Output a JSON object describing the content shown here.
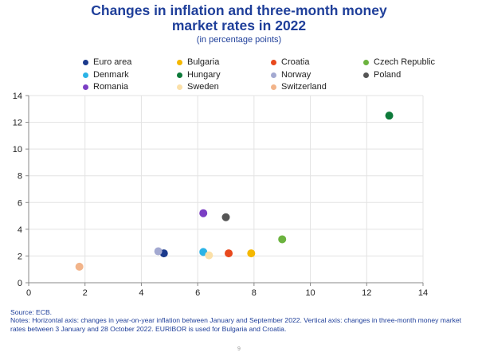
{
  "title_line1": "Changes in inflation and three-month money",
  "title_line2": "market rates in 2022",
  "subtitle": "(in percentage points)",
  "legend": [
    {
      "label": "Euro area",
      "color": "#1b3a8c"
    },
    {
      "label": "Bulgaria",
      "color": "#f5b800"
    },
    {
      "label": "Croatia",
      "color": "#e8491d"
    },
    {
      "label": "Czech Republic",
      "color": "#6cb33f"
    },
    {
      "label": "Denmark",
      "color": "#2bb3e6"
    },
    {
      "label": "Hungary",
      "color": "#0d7a3a"
    },
    {
      "label": "Norway",
      "color": "#a3a9d1"
    },
    {
      "label": "Poland",
      "color": "#555555"
    },
    {
      "label": "Romania",
      "color": "#7b3fc4"
    },
    {
      "label": "Sweden",
      "color": "#fbe0a8"
    },
    {
      "label": "Switzerland",
      "color": "#f2b48a"
    }
  ],
  "chart_data": {
    "type": "scatter",
    "title": "Changes in inflation and three-month money market rates in 2022",
    "subtitle": "(in percentage points)",
    "xlabel": "",
    "ylabel": "",
    "xlim": [
      0,
      14
    ],
    "ylim": [
      0,
      14
    ],
    "xticks": [
      0,
      2,
      4,
      6,
      8,
      10,
      12,
      14
    ],
    "yticks": [
      0,
      2,
      4,
      6,
      8,
      10,
      12,
      14
    ],
    "grid": true,
    "series": [
      {
        "name": "Euro area",
        "x": 4.8,
        "y": 2.2
      },
      {
        "name": "Bulgaria",
        "x": 7.9,
        "y": 2.2
      },
      {
        "name": "Croatia",
        "x": 7.1,
        "y": 2.2
      },
      {
        "name": "Czech Republic",
        "x": 9.0,
        "y": 3.25
      },
      {
        "name": "Denmark",
        "x": 6.2,
        "y": 2.3
      },
      {
        "name": "Hungary",
        "x": 12.8,
        "y": 12.5
      },
      {
        "name": "Norway",
        "x": 4.6,
        "y": 2.35
      },
      {
        "name": "Poland",
        "x": 7.0,
        "y": 4.9
      },
      {
        "name": "Romania",
        "x": 6.2,
        "y": 5.2
      },
      {
        "name": "Sweden",
        "x": 6.4,
        "y": 2.05
      },
      {
        "name": "Switzerland",
        "x": 1.8,
        "y": 1.2
      }
    ]
  },
  "source": "Source: ECB.",
  "notes": "Notes: Horizontal axis: changes in year-on-year inflation between January and September 2022. Vertical axis: changes in three-month money market rates between 3 January and 28 October 2022. EURIBOR is used for Bulgaria and Croatia.",
  "page_number": "9"
}
